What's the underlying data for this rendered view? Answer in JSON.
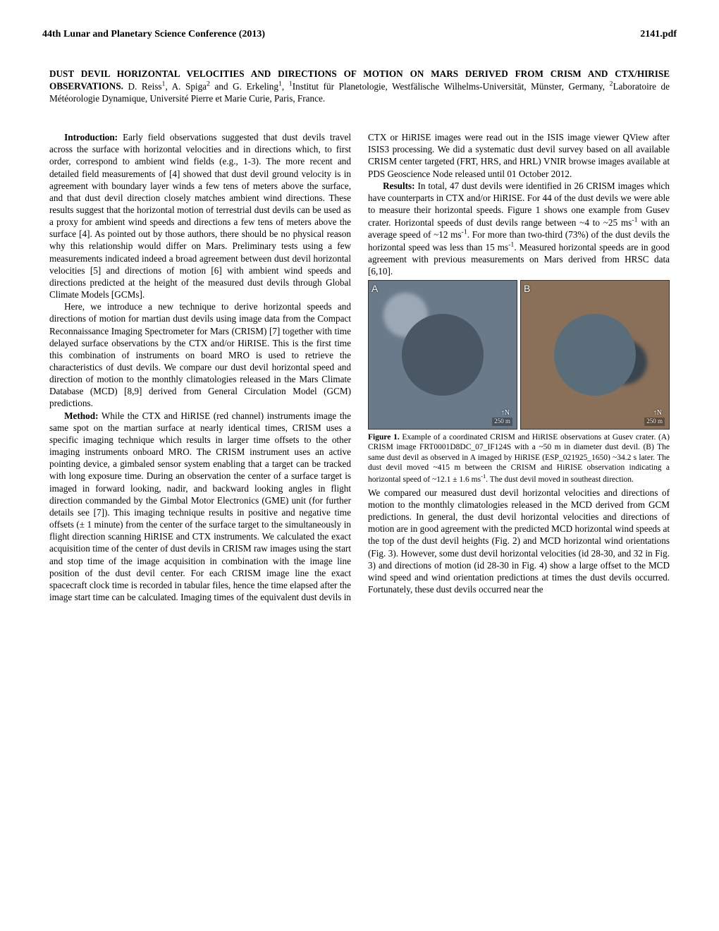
{
  "header": {
    "left": "44th Lunar and Planetary Science Conference (2013)",
    "right": "2141.pdf"
  },
  "title": {
    "main": "DUST DEVIL HORIZONTAL VELOCITIES AND DIRECTIONS OF MOTION ON MARS DERIVED FROM CRISM AND CTX/HIRISE OBSERVATIONS.",
    "authors_html": "D. Reiss<sup>1</sup>, A. Spiga<sup>2</sup> and G. Erkeling<sup>1</sup>, <sup>1</sup>Institut für Planetologie, Westfälische Wilhelms-Universität, Münster, Germany, <sup>2</sup>Laboratoire de Météorologie Dynamique, Université Pierre et Marie Curie, Paris, France."
  },
  "sections": {
    "intro_label": "Introduction:",
    "intro_body": "Early field observations suggested that dust devils travel across the surface with horizontal velocities and in directions which, to first order, correspond to ambient wind fields (e.g., 1-3). The more recent and detailed field measurements of [4] showed that dust devil ground velocity is in agreement with boundary layer winds a few tens of meters above the surface, and that dust devil direction closely matches ambient wind directions. These results suggest that the horizontal motion of terrestrial dust devils can be used as a proxy for ambient wind speeds and directions a few tens of meters above the surface [4]. As pointed out by those authors, there should be no physical reason why this relationship would differ on Mars. Preliminary tests using a few measurements indicated indeed a broad agreement between dust devil horizontal velocities [5] and directions of motion [6] with ambient wind speeds and directions predicted at the height of the measured dust devils through Global Climate Models [GCMs].",
    "intro_p2": "Here, we introduce a new technique to derive horizontal speeds and directions of motion for martian dust devils using image data from the Compact Reconnaissance Imaging Spectrometer for Mars (CRISM) [7] together with time delayed surface observations by the CTX and/or HiRISE. This is the first time this combination of instruments on board MRO is used to retrieve the characteristics of dust devils. We compare our dust devil horizontal speed and direction of motion to the monthly climatologies released in the Mars Climate Database (MCD) [8,9] derived from General Circulation Model (GCM) predictions.",
    "method_label": "Method:",
    "method_body": "While the CTX and HiRISE (red channel) instruments image the same spot on the martian surface at nearly identical times, CRISM uses a specific imaging technique which results in larger time offsets to the other imaging instruments onboard MRO. The CRISM instrument uses an active pointing device, a gimbaled sensor system enabling that a target can be tracked with long exposure time. During an observation the center of a surface target is imaged in forward looking, nadir, and backward looking angles in flight direction commanded by the Gimbal Motor Electronics (GME) unit (for further details see [7]). This imaging technique results in positive and negative time offsets (± 1 minute) from the center of the surface target to the simultaneously in flight direction scanning HiRISE and CTX instruments. We calculated the exact acquisition time of the center of dust devils in CRISM raw images using the start and stop time of the image acquisition in combination with the image line position of the dust devil center. For each CRISM image line the exact spacecraft clock time is recorded in tabular files, hence the time elapsed after the image start time can be calculated. Imaging times of the equivalent dust devils in CTX or HiRISE images were read out in the ISIS image viewer QView after ISIS3 processing. We did a systematic dust devil survey based on all available CRISM center targeted (FRT, HRS, and HRL) VNIR browse images available at PDS Geoscience Node released until 01 October 2012.",
    "results_label": "Results:",
    "results_body_html": "In total, 47 dust devils were identified in 26 CRISM images which have counterparts in CTX and/or HiRISE. For 44 of the dust devils we were able to measure their horizontal speeds. Figure 1 shows one example from Gusev crater. Horizontal speeds of dust devils range between ~4 to ~25 ms<sup>-1</sup> with an average speed of ~12 ms<sup>-1</sup>. For more than two-third (73%) of the dust devils the horizontal speed was less than 15 ms<sup>-1</sup>. Measured horizontal speeds are in good agreement with previous measurements on Mars derived from HRSC data [6,10].",
    "results_p2": "We compared our measured dust devil horizontal velocities and directions of motion to the monthly climatologies released in the MCD derived from GCM predictions. In general, the dust devil horizontal velocities and directions of motion are in good agreement with the predicted MCD horizontal wind speeds at the top of the dust devil heights (Fig. 2) and MCD horizontal wind orientations (Fig. 3). However, some dust devil horizontal velocities (id 28-30, and 32 in Fig. 3) and directions of motion (id 28-30 in Fig. 4) show a large offset to the MCD wind speed and wind orientation predictions at times the dust devils occurred. Fortunately, these dust devils occurred near the"
  },
  "figure1": {
    "panelA": {
      "label": "A",
      "bg": "#6b7a8a",
      "crater": "#4a5866",
      "umbra": "#9ba8b5",
      "north": "↑N",
      "scale": "250 m"
    },
    "panelB": {
      "label": "B",
      "bg": "#8a7058",
      "crater": "#5a6d7a",
      "umbra": "#3a4550",
      "north": "↑N",
      "scale": "250 m"
    },
    "caption_label": "Figure 1.",
    "caption_body_html": "Example of a coordinated CRISM and HiRISE observations at Gusev crater. (A) CRISM image FRT0001D8DC_07_IF124S with a ~50 m in diameter dust devil. (B) The same dust devil as observed in A imaged by HiRISE (ESP_021925_1650) ~34.2 s later. The dust devil moved ~415 m between the CRISM and HiRISE observation indicating a horizontal speed of ~12.1 ± 1.6 ms<sup>-1</sup>. The dust devil moved in southeast direction."
  }
}
